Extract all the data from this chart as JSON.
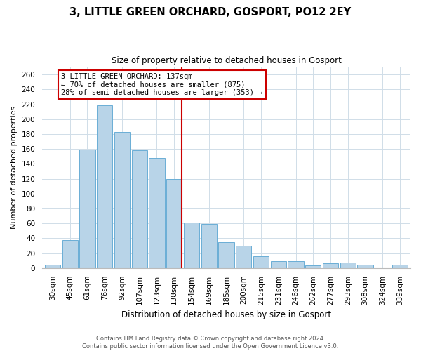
{
  "title": "3, LITTLE GREEN ORCHARD, GOSPORT, PO12 2EY",
  "subtitle": "Size of property relative to detached houses in Gosport",
  "xlabel": "Distribution of detached houses by size in Gosport",
  "ylabel": "Number of detached properties",
  "categories": [
    "30sqm",
    "45sqm",
    "61sqm",
    "76sqm",
    "92sqm",
    "107sqm",
    "123sqm",
    "138sqm",
    "154sqm",
    "169sqm",
    "185sqm",
    "200sqm",
    "215sqm",
    "231sqm",
    "246sqm",
    "262sqm",
    "277sqm",
    "293sqm",
    "308sqm",
    "324sqm",
    "339sqm"
  ],
  "values": [
    5,
    38,
    159,
    219,
    183,
    158,
    148,
    120,
    61,
    59,
    35,
    30,
    16,
    9,
    9,
    4,
    6,
    7,
    5,
    0,
    5
  ],
  "bar_color": "#b8d4e8",
  "bar_edge_color": "#6aaed6",
  "highlight_line_color": "#cc0000",
  "annotation_text": "3 LITTLE GREEN ORCHARD: 137sqm\n← 70% of detached houses are smaller (875)\n28% of semi-detached houses are larger (353) →",
  "annotation_box_color": "#ffffff",
  "annotation_box_edge": "#cc0000",
  "ylim": [
    0,
    270
  ],
  "yticks": [
    0,
    20,
    40,
    60,
    80,
    100,
    120,
    140,
    160,
    180,
    200,
    220,
    240,
    260
  ],
  "footer_line1": "Contains HM Land Registry data © Crown copyright and database right 2024.",
  "footer_line2": "Contains public sector information licensed under the Open Government Licence v3.0.",
  "bg_color": "#ffffff",
  "grid_color": "#d0dde8",
  "title_fontsize": 10.5,
  "subtitle_fontsize": 8.5,
  "xlabel_fontsize": 8.5,
  "ylabel_fontsize": 8,
  "tick_fontsize": 7.5,
  "annot_fontsize": 7.5,
  "footer_fontsize": 6
}
